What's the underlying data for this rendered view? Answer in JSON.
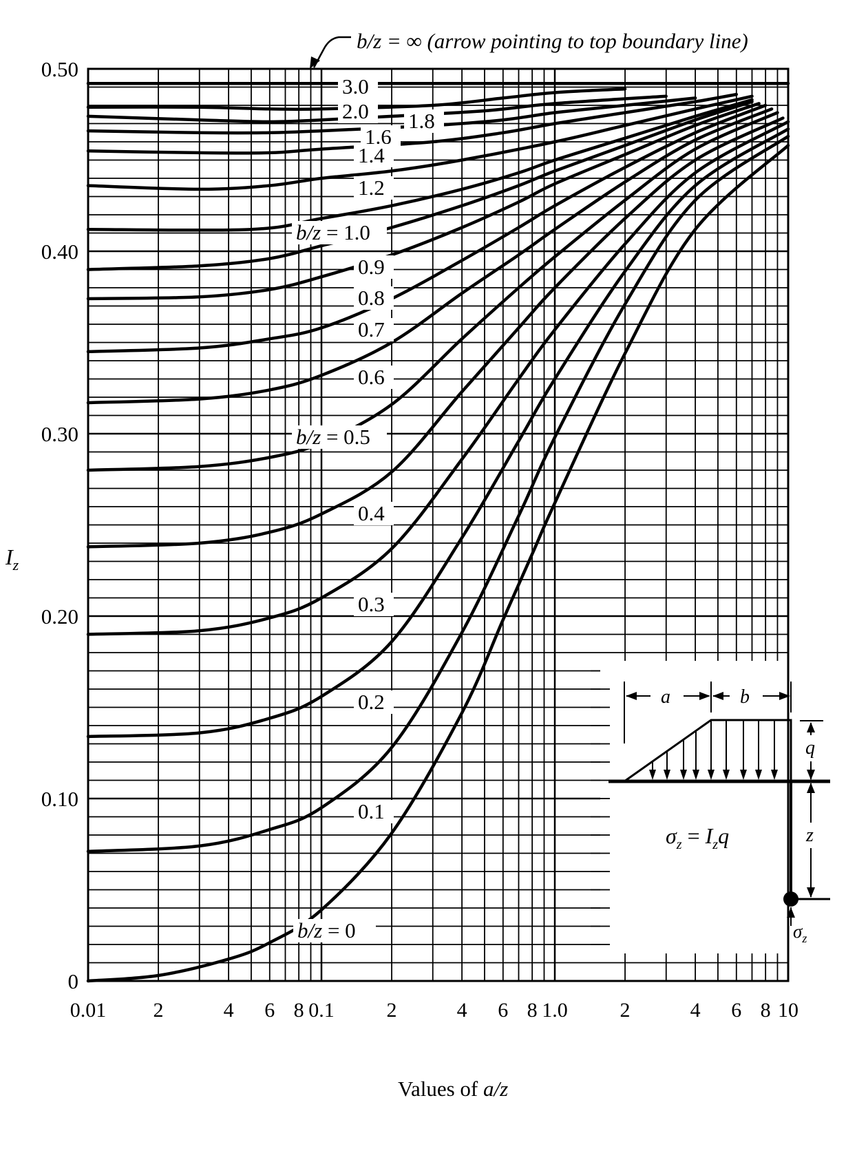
{
  "chart_data": {
    "type": "line",
    "title": "",
    "xlabel": "Values of a/z",
    "ylabel": "Iz",
    "xscale": "log",
    "xlim": [
      0.01,
      10
    ],
    "ylim": [
      0,
      0.5
    ],
    "grid": true,
    "x_tick_labels": [
      "0.01",
      "2",
      "4",
      "6",
      "8",
      "0.1",
      "2",
      "4",
      "6",
      "8",
      "1.0",
      "2",
      "4",
      "6",
      "8",
      "10"
    ],
    "x_tick_values": [
      0.01,
      0.02,
      0.04,
      0.06,
      0.08,
      0.1,
      0.2,
      0.4,
      0.6,
      0.8,
      1.0,
      2,
      4,
      6,
      8,
      10
    ],
    "y_tick_labels": [
      "0",
      "0.10",
      "0.20",
      "0.30",
      "0.40",
      "0.50"
    ],
    "y_tick_values": [
      0,
      0.1,
      0.2,
      0.3,
      0.4,
      0.5
    ],
    "legend": "none (curves labeled inline by b/z)",
    "series": [
      {
        "name": "b/z = ∞",
        "label": "b/z = ∞",
        "x": [
          0.01,
          10
        ],
        "y": [
          0.5,
          0.5
        ]
      },
      {
        "name": "b/z = 3.0",
        "label": "3.0",
        "x": [
          0.01,
          0.1,
          0.5,
          1.0,
          2.0,
          4.0,
          10
        ],
        "y": [
          0.492,
          0.492,
          0.492,
          0.492,
          0.492,
          0.492,
          0.492
        ]
      },
      {
        "name": "b/z = 2.0",
        "label": "2.0",
        "x": [
          0.01,
          0.03,
          0.06,
          0.1,
          0.3,
          0.6,
          1.0,
          2.0
        ],
        "y": [
          0.479,
          0.479,
          0.478,
          0.478,
          0.48,
          0.484,
          0.487,
          0.489
        ]
      },
      {
        "name": "b/z = 1.8",
        "label": "1.8",
        "x": [
          0.01,
          0.03,
          0.06,
          0.1,
          0.2,
          0.5,
          1.0,
          3.0
        ],
        "y": [
          0.474,
          0.472,
          0.471,
          0.472,
          0.474,
          0.477,
          0.481,
          0.485
        ]
      },
      {
        "name": "b/z = 1.6",
        "label": "1.6",
        "x": [
          0.01,
          0.03,
          0.06,
          0.1,
          0.3,
          0.6,
          1.0,
          2.0,
          4.0
        ],
        "y": [
          0.466,
          0.465,
          0.465,
          0.466,
          0.469,
          0.472,
          0.476,
          0.48,
          0.484
        ]
      },
      {
        "name": "b/z = 1.4",
        "label": "1.4",
        "x": [
          0.01,
          0.03,
          0.06,
          0.1,
          0.3,
          0.6,
          1.0,
          2.0,
          4.0,
          6.0
        ],
        "y": [
          0.455,
          0.454,
          0.454,
          0.456,
          0.46,
          0.465,
          0.47,
          0.476,
          0.482,
          0.486
        ]
      },
      {
        "name": "b/z = 1.2",
        "label": "1.2",
        "x": [
          0.01,
          0.03,
          0.06,
          0.1,
          0.2,
          0.4,
          1.0,
          2.0,
          4.0,
          7.0
        ],
        "y": [
          0.436,
          0.434,
          0.436,
          0.44,
          0.444,
          0.45,
          0.46,
          0.469,
          0.478,
          0.485
        ]
      },
      {
        "name": "b/z = 1.0",
        "label": "b/z = 1.0",
        "x": [
          0.01,
          0.05,
          0.1,
          0.2,
          0.4,
          0.7,
          1.0,
          2.0,
          4.0,
          7.0
        ],
        "y": [
          0.412,
          0.412,
          0.418,
          0.425,
          0.434,
          0.443,
          0.45,
          0.462,
          0.474,
          0.483
        ]
      },
      {
        "name": "b/z = 0.9",
        "label": "0.9",
        "x": [
          0.01,
          0.03,
          0.06,
          0.1,
          0.2,
          0.4,
          0.7,
          1.0,
          2.0,
          4.0,
          7.0
        ],
        "y": [
          0.39,
          0.392,
          0.396,
          0.403,
          0.413,
          0.425,
          0.436,
          0.444,
          0.458,
          0.472,
          0.482
        ]
      },
      {
        "name": "b/z = 0.8",
        "label": "0.8",
        "x": [
          0.01,
          0.03,
          0.06,
          0.1,
          0.2,
          0.4,
          0.7,
          1.0,
          2.0,
          4.0,
          7.5
        ],
        "y": [
          0.374,
          0.375,
          0.379,
          0.386,
          0.398,
          0.413,
          0.427,
          0.437,
          0.453,
          0.469,
          0.481
        ]
      },
      {
        "name": "b/z = 0.7",
        "label": "0.7",
        "x": [
          0.01,
          0.03,
          0.06,
          0.1,
          0.2,
          0.4,
          0.7,
          1.0,
          2.0,
          4.0,
          8.0
        ],
        "y": [
          0.345,
          0.347,
          0.352,
          0.358,
          0.374,
          0.395,
          0.413,
          0.425,
          0.446,
          0.465,
          0.48
        ]
      },
      {
        "name": "b/z = 0.6",
        "label": "0.6",
        "x": [
          0.01,
          0.03,
          0.06,
          0.1,
          0.2,
          0.4,
          0.7,
          1.0,
          2.0,
          4.0,
          8.5
        ],
        "y": [
          0.317,
          0.319,
          0.324,
          0.332,
          0.35,
          0.377,
          0.398,
          0.412,
          0.438,
          0.461,
          0.478
        ]
      },
      {
        "name": "b/z = 0.5",
        "label": "b/z = 0.5",
        "x": [
          0.01,
          0.03,
          0.06,
          0.1,
          0.2,
          0.4,
          0.7,
          1.0,
          2.0,
          4.0,
          9.0
        ],
        "y": [
          0.28,
          0.282,
          0.287,
          0.295,
          0.316,
          0.352,
          0.38,
          0.397,
          0.428,
          0.456,
          0.476
        ]
      },
      {
        "name": "b/z = 0.4",
        "label": "0.4",
        "x": [
          0.01,
          0.03,
          0.06,
          0.1,
          0.2,
          0.4,
          0.7,
          1.0,
          2.0,
          4.0,
          9.5
        ],
        "y": [
          0.238,
          0.24,
          0.246,
          0.256,
          0.279,
          0.323,
          0.358,
          0.38,
          0.418,
          0.45,
          0.473
        ]
      },
      {
        "name": "b/z = 0.3",
        "label": "0.3",
        "x": [
          0.01,
          0.03,
          0.06,
          0.1,
          0.2,
          0.4,
          0.7,
          1.0,
          2.0,
          4.0,
          10
        ],
        "y": [
          0.19,
          0.192,
          0.199,
          0.21,
          0.237,
          0.286,
          0.33,
          0.357,
          0.404,
          0.443,
          0.471
        ]
      },
      {
        "name": "b/z = 0.2",
        "label": "0.2",
        "x": [
          0.01,
          0.03,
          0.06,
          0.1,
          0.2,
          0.4,
          0.7,
          1.0,
          2.0,
          4.0,
          10
        ],
        "y": [
          0.134,
          0.136,
          0.144,
          0.156,
          0.186,
          0.243,
          0.296,
          0.33,
          0.389,
          0.436,
          0.467
        ]
      },
      {
        "name": "b/z = 0.1",
        "label": "0.1",
        "x": [
          0.01,
          0.03,
          0.06,
          0.1,
          0.2,
          0.4,
          0.7,
          1.0,
          2.0,
          4.0,
          10
        ],
        "y": [
          0.071,
          0.074,
          0.083,
          0.095,
          0.128,
          0.191,
          0.255,
          0.298,
          0.371,
          0.428,
          0.463
        ]
      },
      {
        "name": "b/z = 0",
        "label": "b/z = 0",
        "x": [
          0.01,
          0.02,
          0.04,
          0.06,
          0.1,
          0.2,
          0.4,
          0.6,
          0.8,
          1.0,
          2.0,
          4.0,
          10
        ],
        "y": [
          0.0,
          0.003,
          0.012,
          0.021,
          0.039,
          0.081,
          0.147,
          0.198,
          0.234,
          0.262,
          0.344,
          0.412,
          0.458
        ]
      }
    ],
    "annotations": [
      "b/z = ∞ (arrow pointing to top boundary line)"
    ]
  },
  "figure": {
    "y_axis_label": "I",
    "y_axis_label_sub": "z",
    "x_axis_label_prefix": "Values of ",
    "x_axis_label_var": "a/z",
    "inset": {
      "dim_a": "a",
      "dim_b": "b",
      "dim_q": "q",
      "dim_z": "z",
      "formula_lhs": "σ",
      "formula_lhs_sub": "z",
      "formula_eq": " = ",
      "formula_rhs": "I",
      "formula_rhs_sub": "z",
      "formula_rhs_tail": "q",
      "point_label": "σ",
      "point_label_sub": "z"
    },
    "colors": {
      "ink": "#000000",
      "paper": "#ffffff"
    }
  }
}
